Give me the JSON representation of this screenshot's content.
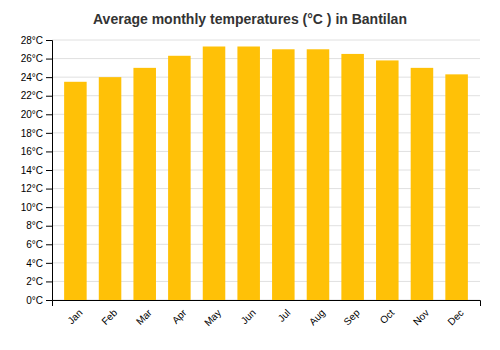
{
  "chart_data": {
    "type": "bar",
    "title": "Average monthly temperatures (°C ) in Bantilan",
    "categories": [
      "Jan",
      "Feb",
      "Mar",
      "Apr",
      "May",
      "Jun",
      "Jul",
      "Aug",
      "Sep",
      "Oct",
      "Nov",
      "Dec"
    ],
    "values": [
      23.5,
      24.0,
      25.0,
      26.3,
      27.3,
      27.3,
      27.0,
      27.0,
      26.5,
      25.8,
      25.0,
      24.3
    ],
    "color": "#FFC107",
    "ylim": [
      0,
      28
    ],
    "yticks": [
      {
        "value": 0,
        "label": "0°C"
      },
      {
        "value": 2,
        "label": "2°C"
      },
      {
        "value": 4,
        "label": "4°C"
      },
      {
        "value": 6,
        "label": "6°C"
      },
      {
        "value": 8,
        "label": "8°C"
      },
      {
        "value": 10,
        "label": "10°C"
      },
      {
        "value": 12,
        "label": "12°C"
      },
      {
        "value": 14,
        "label": "14°C"
      },
      {
        "value": 16,
        "label": "16°C"
      },
      {
        "value": 18,
        "label": "18°C"
      },
      {
        "value": 20,
        "label": "20°C"
      },
      {
        "value": 22,
        "label": "22°C"
      },
      {
        "value": 24,
        "label": "24°C"
      },
      {
        "value": 26,
        "label": "26°C"
      },
      {
        "value": 28,
        "label": "28°C"
      }
    ],
    "grid": true
  }
}
